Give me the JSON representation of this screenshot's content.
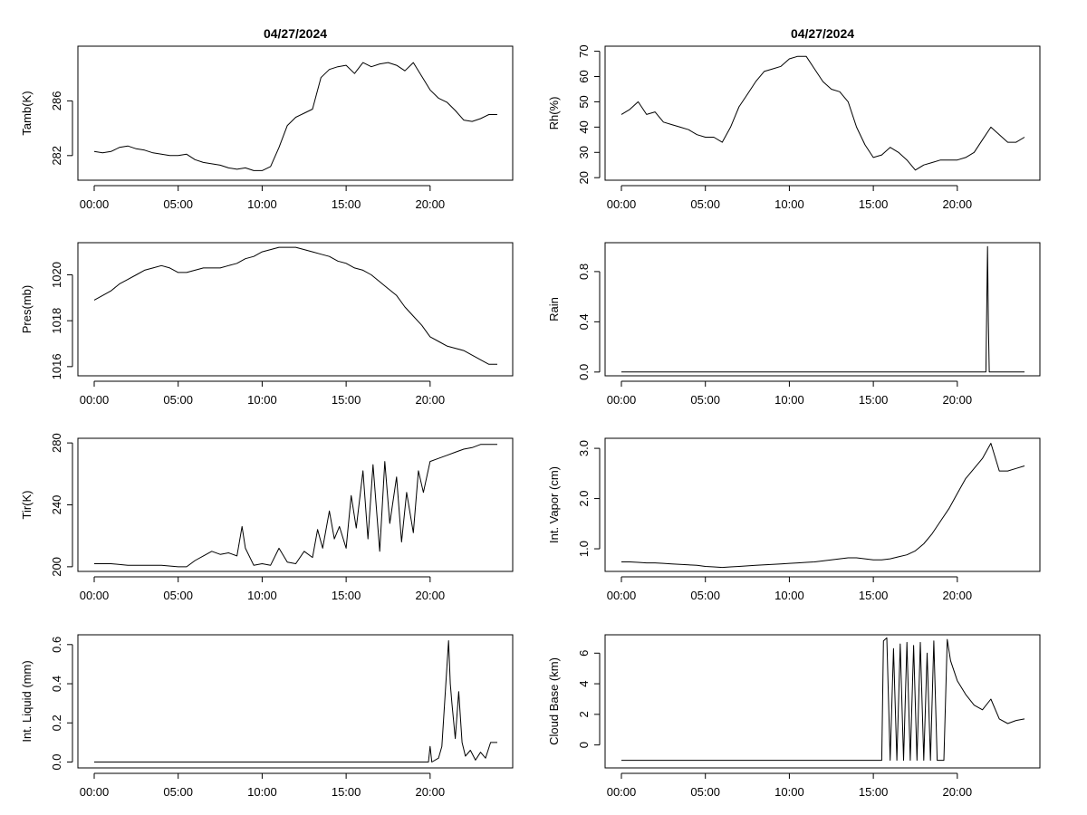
{
  "figure": {
    "background": "#ffffff",
    "line_color": "#000000"
  },
  "chart_data": [
    {
      "type": "line",
      "title": "04/27/2024",
      "ylabel": "Tamb(K)",
      "xlabel": "",
      "xticks": [
        "00:00",
        "05:00",
        "10:00",
        "15:00",
        "20:00"
      ],
      "ylim": [
        280.2,
        290.0
      ],
      "yticks": [
        282,
        286
      ],
      "x": [
        0,
        0.5,
        1,
        1.5,
        2,
        2.5,
        3,
        3.5,
        4,
        4.5,
        5,
        5.5,
        6,
        6.5,
        7,
        7.5,
        8,
        8.5,
        9,
        9.5,
        10,
        10.5,
        11,
        11.5,
        12,
        12.5,
        13,
        13.5,
        14,
        14.5,
        15,
        15.5,
        16,
        16.5,
        17,
        17.5,
        18,
        18.5,
        19,
        19.5,
        20,
        20.5,
        21,
        21.5,
        22,
        22.5,
        23,
        23.5,
        24
      ],
      "values": [
        282.3,
        282.2,
        282.3,
        282.6,
        282.7,
        282.5,
        282.4,
        282.2,
        282.1,
        282.0,
        282.0,
        282.1,
        281.7,
        281.5,
        281.4,
        281.3,
        281.1,
        281.0,
        281.1,
        280.9,
        280.9,
        281.2,
        282.6,
        284.2,
        284.8,
        285.1,
        285.4,
        287.7,
        288.3,
        288.5,
        288.6,
        288.0,
        288.8,
        288.5,
        288.7,
        288.8,
        288.6,
        288.2,
        288.8,
        287.8,
        286.8,
        286.2,
        285.9,
        285.3,
        284.6,
        284.5,
        284.7,
        285.0,
        285.0
      ],
      "ytick_labels": [
        "282",
        "286"
      ]
    },
    {
      "type": "line",
      "title": "04/27/2024",
      "ylabel": "Rh(%)",
      "xlabel": "",
      "xticks": [
        "00:00",
        "05:00",
        "10:00",
        "15:00",
        "20:00"
      ],
      "ylim": [
        19,
        72
      ],
      "yticks": [
        20,
        30,
        40,
        50,
        60,
        70
      ],
      "x": [
        0,
        0.5,
        1,
        1.5,
        2,
        2.5,
        3,
        3.5,
        4,
        4.5,
        5,
        5.5,
        6,
        6.5,
        7,
        7.5,
        8,
        8.5,
        9,
        9.5,
        10,
        10.5,
        11,
        11.5,
        12,
        12.5,
        13,
        13.5,
        14,
        14.5,
        15,
        15.5,
        16,
        16.5,
        17,
        17.5,
        18,
        18.5,
        19,
        19.5,
        20,
        20.5,
        21,
        21.5,
        22,
        22.5,
        23,
        23.5,
        24
      ],
      "values": [
        45,
        47,
        50,
        45,
        46,
        42,
        41,
        40,
        39,
        37,
        36,
        36,
        34,
        40,
        48,
        53,
        58,
        62,
        63,
        64,
        67,
        68,
        68,
        63,
        58,
        55,
        54,
        50,
        40,
        33,
        28,
        29,
        32,
        30,
        27,
        23,
        25,
        26,
        27,
        27,
        27,
        28,
        30,
        35,
        40,
        37,
        34,
        34,
        36
      ],
      "ytick_labels": [
        "20",
        "30",
        "40",
        "50",
        "60",
        "70"
      ]
    },
    {
      "type": "line",
      "title": "",
      "ylabel": "Pres(mb)",
      "xlabel": "",
      "xticks": [
        "00:00",
        "05:00",
        "10:00",
        "15:00",
        "20:00"
      ],
      "ylim": [
        1015.6,
        1021.4
      ],
      "yticks": [
        1016,
        1018,
        1020
      ],
      "x": [
        0,
        0.5,
        1,
        1.5,
        2,
        2.5,
        3,
        3.5,
        4,
        4.5,
        5,
        5.5,
        6,
        6.5,
        7,
        7.5,
        8,
        8.5,
        9,
        9.5,
        10,
        10.5,
        11,
        11.5,
        12,
        12.5,
        13,
        13.5,
        14,
        14.5,
        15,
        15.5,
        16,
        16.5,
        17,
        17.5,
        18,
        18.5,
        19,
        19.5,
        20,
        20.5,
        21,
        21.5,
        22,
        22.5,
        23,
        23.5,
        24
      ],
      "values": [
        1018.9,
        1019.1,
        1019.3,
        1019.6,
        1019.8,
        1020.0,
        1020.2,
        1020.3,
        1020.4,
        1020.3,
        1020.1,
        1020.1,
        1020.2,
        1020.3,
        1020.3,
        1020.3,
        1020.4,
        1020.5,
        1020.7,
        1020.8,
        1021.0,
        1021.1,
        1021.2,
        1021.2,
        1021.2,
        1021.1,
        1021.0,
        1020.9,
        1020.8,
        1020.6,
        1020.5,
        1020.3,
        1020.2,
        1020.0,
        1019.7,
        1019.4,
        1019.1,
        1018.6,
        1018.2,
        1017.8,
        1017.3,
        1017.1,
        1016.9,
        1016.8,
        1016.7,
        1016.5,
        1016.3,
        1016.1,
        1016.1
      ],
      "ytick_labels": [
        "1016",
        "1018",
        "1020"
      ]
    },
    {
      "type": "line",
      "title": "",
      "ylabel": "Rain",
      "xlabel": "",
      "xticks": [
        "00:00",
        "05:00",
        "10:00",
        "15:00",
        "20:00"
      ],
      "ylim": [
        -0.03,
        1.03
      ],
      "yticks": [
        0.0,
        0.4,
        0.8
      ],
      "x": [
        0,
        21.7,
        21.75,
        21.8,
        21.85,
        21.9,
        24
      ],
      "values": [
        0,
        0,
        0.5,
        1.0,
        0.4,
        0,
        0
      ],
      "ytick_labels": [
        "0.0",
        "0.4",
        "0.8"
      ]
    },
    {
      "type": "line",
      "title": "",
      "ylabel": "Tir(K)",
      "xlabel": "",
      "xticks": [
        "00:00",
        "05:00",
        "10:00",
        "15:00",
        "20:00"
      ],
      "ylim": [
        197,
        283
      ],
      "yticks": [
        200,
        240,
        280
      ],
      "x": [
        0,
        1,
        2,
        3,
        4,
        5,
        5.5,
        6,
        6.5,
        7,
        7.5,
        8,
        8.5,
        8.8,
        9,
        9.5,
        10,
        10.5,
        11,
        11.5,
        12,
        12.5,
        13,
        13.3,
        13.6,
        14,
        14.3,
        14.6,
        15,
        15.3,
        15.6,
        16,
        16.3,
        16.6,
        17,
        17.3,
        17.6,
        18,
        18.3,
        18.6,
        19,
        19.3,
        19.6,
        20,
        20.5,
        21,
        21.5,
        22,
        22.5,
        23,
        24
      ],
      "values": [
        202,
        202,
        201,
        201,
        201,
        200,
        200,
        204,
        207,
        210,
        208,
        209,
        207,
        226,
        212,
        201,
        202,
        201,
        212,
        203,
        202,
        210,
        206,
        224,
        212,
        236,
        218,
        226,
        212,
        246,
        225,
        262,
        218,
        266,
        210,
        268,
        228,
        258,
        216,
        248,
        222,
        262,
        248,
        268,
        270,
        272,
        274,
        276,
        277,
        279,
        279
      ],
      "ytick_labels": [
        "200",
        "240",
        "280"
      ]
    },
    {
      "type": "line",
      "title": "",
      "ylabel": "Int. Vapor (cm)",
      "xlabel": "",
      "xticks": [
        "00:00",
        "05:00",
        "10:00",
        "15:00",
        "20:00"
      ],
      "ylim": [
        0.55,
        3.2
      ],
      "yticks": [
        1.0,
        2.0,
        3.0
      ],
      "x": [
        0,
        0.5,
        1,
        1.5,
        2,
        2.5,
        3,
        3.5,
        4,
        4.5,
        5,
        5.5,
        6,
        6.5,
        7,
        7.5,
        8,
        8.5,
        9,
        9.5,
        10,
        10.5,
        11,
        11.5,
        12,
        12.5,
        13,
        13.5,
        14,
        14.5,
        15,
        15.5,
        16,
        16.5,
        17,
        17.5,
        18,
        18.5,
        19,
        19.5,
        20,
        20.5,
        21,
        21.5,
        22,
        22.5,
        23,
        23.5,
        24
      ],
      "values": [
        0.74,
        0.74,
        0.73,
        0.72,
        0.72,
        0.71,
        0.7,
        0.69,
        0.68,
        0.67,
        0.65,
        0.64,
        0.63,
        0.64,
        0.65,
        0.66,
        0.67,
        0.68,
        0.69,
        0.7,
        0.71,
        0.72,
        0.73,
        0.74,
        0.76,
        0.78,
        0.8,
        0.82,
        0.82,
        0.8,
        0.78,
        0.78,
        0.8,
        0.84,
        0.88,
        0.96,
        1.1,
        1.3,
        1.55,
        1.8,
        2.1,
        2.4,
        2.6,
        2.8,
        3.1,
        2.55,
        2.55,
        2.6,
        2.65
      ],
      "ytick_labels": [
        "1.0",
        "2.0",
        "3.0"
      ]
    },
    {
      "type": "line",
      "title": "",
      "ylabel": "Int. Liquid (mm)",
      "xlabel": "",
      "xticks": [
        "00:00",
        "05:00",
        "10:00",
        "15:00",
        "20:00"
      ],
      "ylim": [
        -0.03,
        0.65
      ],
      "yticks": [
        0.0,
        0.2,
        0.4,
        0.6
      ],
      "x": [
        0,
        19.9,
        20.0,
        20.1,
        20.5,
        20.7,
        20.9,
        21.1,
        21.2,
        21.3,
        21.5,
        21.7,
        21.9,
        22.1,
        22.4,
        22.7,
        23,
        23.3,
        23.6,
        24
      ],
      "values": [
        0,
        0,
        0.08,
        0,
        0.02,
        0.08,
        0.35,
        0.62,
        0.4,
        0.3,
        0.12,
        0.36,
        0.1,
        0.03,
        0.06,
        0.01,
        0.05,
        0.02,
        0.1,
        0.1
      ],
      "ytick_labels": [
        "0.0",
        "0.2",
        "0.4",
        "0.6"
      ]
    },
    {
      "type": "line",
      "title": "",
      "ylabel": "Cloud Base (km)",
      "xlabel": "",
      "xticks": [
        "00:00",
        "05:00",
        "10:00",
        "15:00",
        "20:00"
      ],
      "ylim": [
        -1.5,
        7.2
      ],
      "yticks": [
        0,
        2,
        4,
        6
      ],
      "x": [
        0,
        15.5,
        15.6,
        15.8,
        16.0,
        16.2,
        16.4,
        16.6,
        16.8,
        17.0,
        17.2,
        17.4,
        17.6,
        17.8,
        18.0,
        18.2,
        18.4,
        18.6,
        18.8,
        19.0,
        19.2,
        19.4,
        19.6,
        20,
        20.5,
        21,
        21.5,
        22,
        22.5,
        23,
        23.5,
        24
      ],
      "values": [
        -1,
        -1,
        6.8,
        7.0,
        -1,
        6.3,
        -1,
        6.6,
        -1,
        6.7,
        -1,
        6.5,
        -1,
        6.7,
        -1,
        6.0,
        -1,
        6.8,
        -1,
        -1,
        -1,
        6.9,
        5.5,
        4.2,
        3.3,
        2.6,
        2.3,
        3.0,
        1.7,
        1.4,
        1.6,
        1.7
      ],
      "ytick_labels": [
        "0",
        "2",
        "4",
        "6"
      ]
    }
  ]
}
